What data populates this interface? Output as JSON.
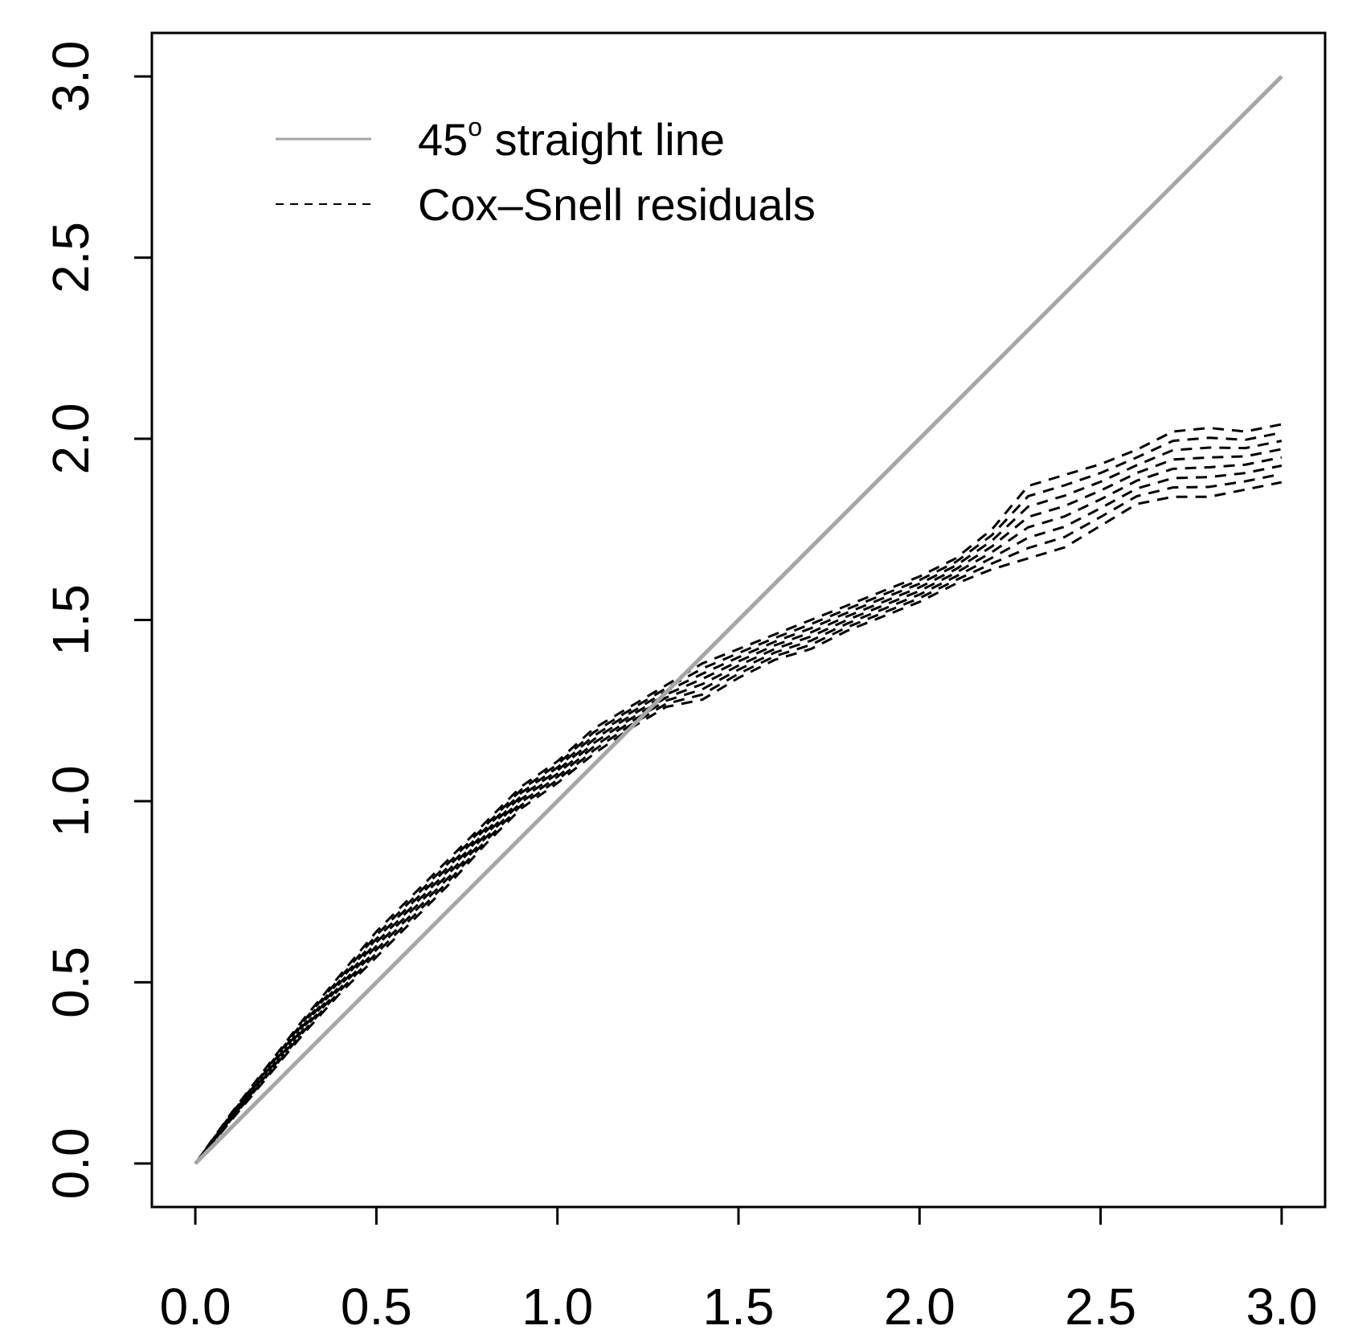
{
  "chart_data": {
    "type": "line",
    "title": "",
    "xlabel": "",
    "ylabel": "",
    "xlim": [
      -0.12,
      3.12
    ],
    "ylim": [
      -0.12,
      3.12
    ],
    "x_ticks": [
      "0.0",
      "0.5",
      "1.0",
      "1.5",
      "2.0",
      "2.5",
      "3.0"
    ],
    "y_ticks": [
      "0.0",
      "0.5",
      "1.0",
      "1.5",
      "2.0",
      "2.5",
      "3.0"
    ],
    "legend": {
      "position": "top-left",
      "entries": [
        {
          "label": "45",
          "superscript": "o",
          "suffix": " straight line",
          "style": "solid",
          "color": "#a6a6a6"
        },
        {
          "label": "Cox–Snell residuals",
          "style": "dashed",
          "color": "#000000"
        }
      ]
    },
    "reference_line": {
      "name": "45° straight line",
      "color": "#a6a6a6",
      "x": [
        0,
        3
      ],
      "y": [
        0,
        3
      ]
    },
    "residual_curves": {
      "name": "Cox–Snell residuals",
      "color": "#000000",
      "count": 8,
      "x": [
        0,
        0.1,
        0.2,
        0.3,
        0.4,
        0.5,
        0.6,
        0.7,
        0.8,
        0.9,
        1.0,
        1.1,
        1.2,
        1.3,
        1.4,
        1.5,
        1.6,
        1.7,
        1.8,
        1.9,
        2.0,
        2.1,
        2.2,
        2.3,
        2.4,
        2.5,
        2.6,
        2.7,
        2.8,
        2.9,
        3.0
      ],
      "upper": [
        0,
        0.14,
        0.27,
        0.4,
        0.52,
        0.64,
        0.74,
        0.84,
        0.94,
        1.04,
        1.11,
        1.2,
        1.26,
        1.32,
        1.38,
        1.42,
        1.46,
        1.5,
        1.54,
        1.58,
        1.62,
        1.67,
        1.75,
        1.87,
        1.9,
        1.93,
        1.97,
        2.02,
        2.03,
        2.02,
        2.04
      ],
      "lower": [
        0,
        0.12,
        0.24,
        0.36,
        0.47,
        0.57,
        0.67,
        0.77,
        0.88,
        0.98,
        1.05,
        1.13,
        1.2,
        1.26,
        1.28,
        1.34,
        1.39,
        1.42,
        1.47,
        1.51,
        1.55,
        1.6,
        1.64,
        1.67,
        1.7,
        1.76,
        1.82,
        1.84,
        1.84,
        1.86,
        1.88
      ]
    }
  }
}
